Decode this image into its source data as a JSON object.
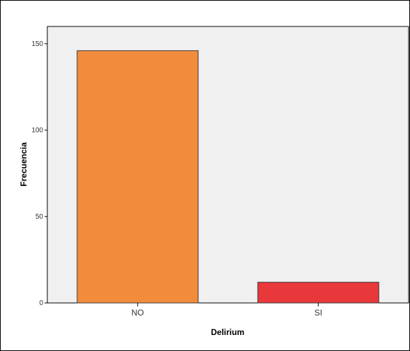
{
  "chart_data": {
    "type": "bar",
    "title": "",
    "xlabel": "Delirium",
    "ylabel": "Frecuencia",
    "categories": [
      "NO",
      "SI"
    ],
    "values": [
      146,
      12
    ],
    "ylim": [
      0,
      160
    ],
    "yticks": [
      0,
      50,
      100,
      150
    ],
    "grid": false,
    "colors": {
      "bars": [
        "#f28c3d",
        "#e8383b"
      ],
      "plot_background": "#f0f0f0",
      "bar_edge": "#3a3a3a"
    }
  }
}
